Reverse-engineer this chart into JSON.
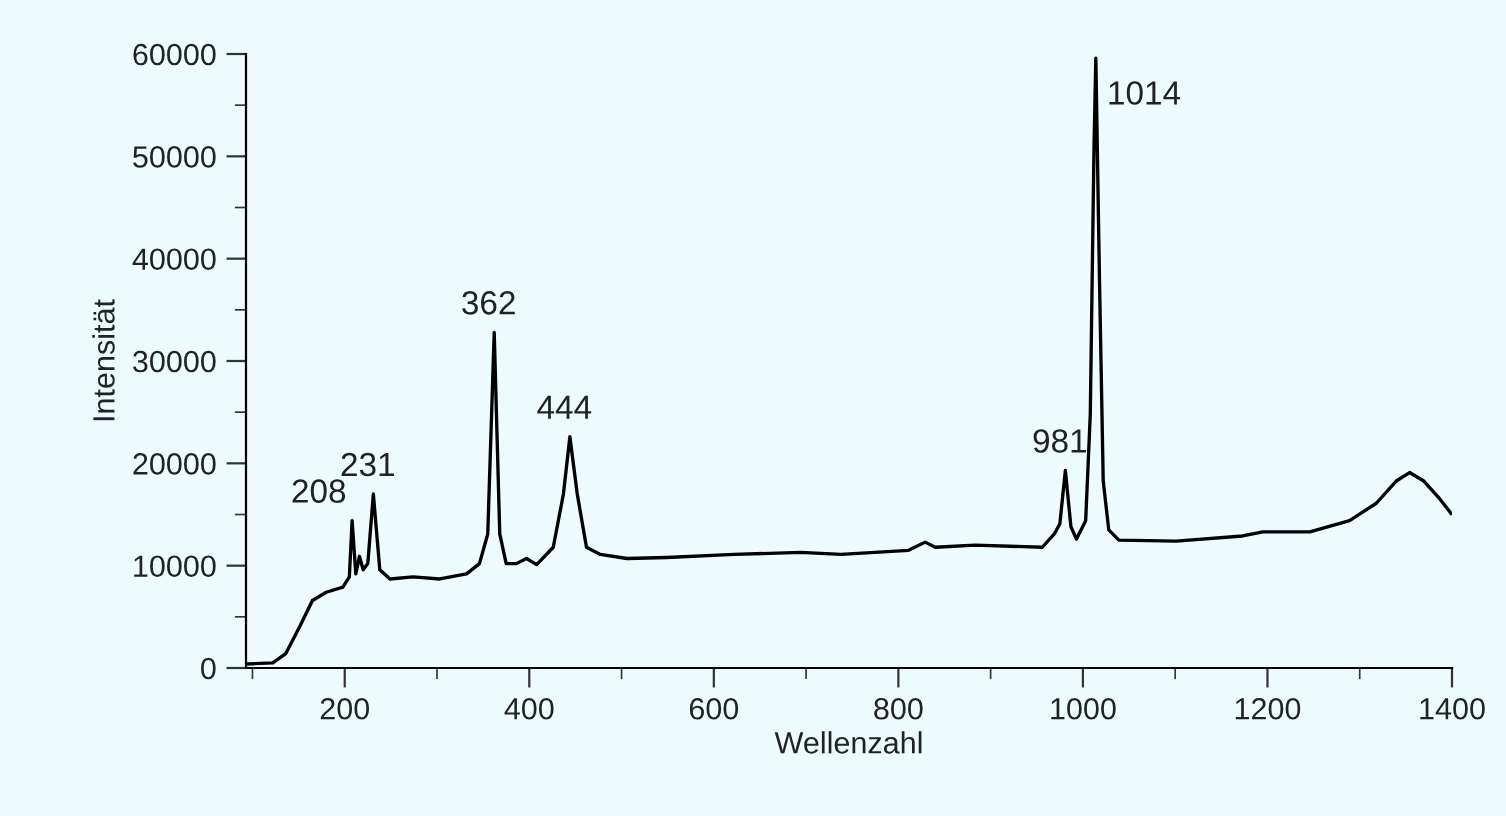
{
  "chart_data": {
    "type": "line",
    "xlabel": "Wellenzahl",
    "ylabel": "Intensität",
    "xlim": [
      93,
      1400
    ],
    "ylim": [
      0,
      60000
    ],
    "xticks": [
      {
        "value": 100,
        "label": null
      },
      200,
      {
        "value": 300,
        "label": null
      },
      400,
      {
        "value": 500,
        "label": null
      },
      600,
      {
        "value": 700,
        "label": null
      },
      800,
      {
        "value": 900,
        "label": null
      },
      1000,
      {
        "value": 1100,
        "label": null
      },
      1200,
      {
        "value": 1300,
        "label": null
      },
      1400
    ],
    "yticks": [
      0,
      {
        "value": 5000,
        "label": null
      },
      10000,
      {
        "value": 15000,
        "label": null
      },
      20000,
      {
        "value": 25000,
        "label": null
      },
      30000,
      {
        "value": 35000,
        "label": null
      },
      40000,
      {
        "value": 45000,
        "label": null
      },
      50000,
      {
        "value": 55000,
        "label": null
      },
      60000
    ],
    "grid": false,
    "legend": false,
    "marker": "none",
    "line_style": "solid",
    "series": [
      {
        "color": "#000000",
        "x": [
          96,
          122,
          136,
          151,
          165,
          180,
          198,
          205,
          208,
          212,
          216,
          220,
          225,
          231,
          238,
          249,
          274,
          303,
          332,
          346,
          355,
          362,
          368,
          375,
          386,
          397,
          408,
          426,
          437,
          444,
          452,
          462,
          477,
          506,
          549,
          622,
          694,
          738,
          811,
          829,
          840,
          883,
          956,
          969,
          975,
          981,
          987,
          993,
          1003,
          1008,
          1012,
          1014,
          1018,
          1022,
          1028,
          1039,
          1101,
          1173,
          1195,
          1246,
          1289,
          1318,
          1340,
          1354,
          1369,
          1387,
          1399
        ],
        "values": [
          400,
          500,
          1400,
          4000,
          6600,
          7400,
          7900,
          8900,
          14400,
          9200,
          10900,
          9600,
          10200,
          17000,
          9600,
          8700,
          8900,
          8700,
          9200,
          10200,
          13100,
          32800,
          13100,
          10200,
          10200,
          10700,
          10100,
          11800,
          17000,
          22600,
          17000,
          11800,
          11100,
          10700,
          10800,
          11100,
          11300,
          11100,
          11500,
          12300,
          11800,
          12000,
          11800,
          13100,
          14100,
          19300,
          13800,
          12600,
          14400,
          24800,
          50800,
          59600,
          37800,
          18300,
          13500,
          12500,
          12400,
          12900,
          13300,
          13300,
          14400,
          16100,
          18300,
          19100,
          18300,
          16500,
          15100
        ]
      }
    ],
    "annotations": [
      {
        "text": "208",
        "x": 208,
        "y": 14400
      },
      {
        "text": "231",
        "x": 231,
        "y": 17000
      },
      {
        "text": "362",
        "x": 362,
        "y": 32800
      },
      {
        "text": "444",
        "x": 444,
        "y": 22600
      },
      {
        "text": "981",
        "x": 981,
        "y": 19300
      },
      {
        "text": "1014",
        "x": 1014,
        "y": 59600
      }
    ]
  }
}
